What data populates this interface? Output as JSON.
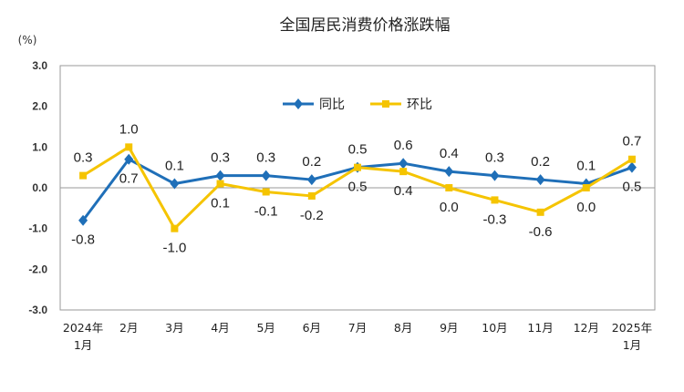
{
  "chart_data": {
    "type": "line",
    "title": "全国居民消费价格涨跌幅",
    "unit": "(%)",
    "ylim": [
      -3.0,
      3.0
    ],
    "yticks": [
      "3.0",
      "2.0",
      "1.0",
      "0.0",
      "-1.0",
      "-2.0",
      "-3.0"
    ],
    "categories": [
      [
        "2024年",
        "1月"
      ],
      [
        "2月"
      ],
      [
        "3月"
      ],
      [
        "4月"
      ],
      [
        "5月"
      ],
      [
        "6月"
      ],
      [
        "7月"
      ],
      [
        "8月"
      ],
      [
        "9月"
      ],
      [
        "10月"
      ],
      [
        "11月"
      ],
      [
        "12月"
      ],
      [
        "2025年",
        "1月"
      ]
    ],
    "legend_position": "top-center",
    "grid": false,
    "series": [
      {
        "name": "同比",
        "color": "#1F6FB8",
        "marker": "diamond",
        "values": [
          -0.8,
          0.7,
          0.1,
          0.3,
          0.3,
          0.2,
          0.5,
          0.6,
          0.4,
          0.3,
          0.2,
          0.1,
          0.5
        ],
        "labels": [
          "-0.8",
          "0.7",
          "0.1",
          "0.3",
          "0.3",
          "0.2",
          "0.5",
          "0.6",
          "0.4",
          "0.3",
          "0.2",
          "0.1",
          "0.5"
        ]
      },
      {
        "name": "环比",
        "color": "#F5C400",
        "marker": "square",
        "values": [
          0.3,
          1.0,
          -1.0,
          0.1,
          -0.1,
          -0.2,
          0.5,
          0.4,
          0.0,
          -0.3,
          -0.6,
          0.0,
          0.7
        ],
        "labels": [
          "0.3",
          "1.0",
          "-1.0",
          "0.1",
          "-0.1",
          "-0.2",
          "0.5",
          "0.4",
          "0.0",
          "-0.3",
          "-0.6",
          "0.0",
          "0.7"
        ]
      }
    ]
  }
}
